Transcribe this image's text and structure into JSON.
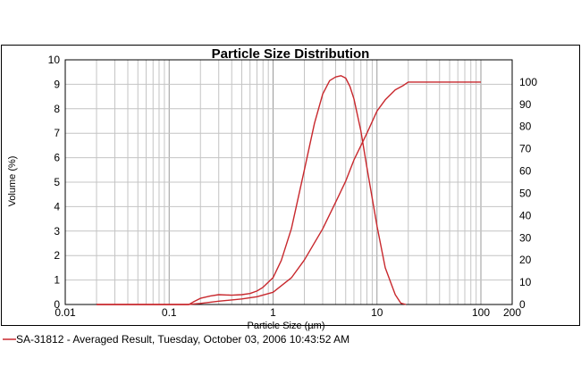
{
  "chart_data": {
    "type": "line",
    "title": "Particle Size Distribution",
    "xlabel": "Particle Size (µm)",
    "ylabel": "Volume (%)",
    "x_scale": "log",
    "xlim": [
      0.01,
      200
    ],
    "ylim": [
      0,
      10
    ],
    "y2lim": [
      0,
      110
    ],
    "grid": true,
    "legend_position": "bottom",
    "x_tick_labels": [
      "0.01",
      "0.1",
      "1",
      "10",
      "100",
      "200"
    ],
    "y_tick_labels": [
      "0",
      "1",
      "2",
      "3",
      "4",
      "5",
      "6",
      "7",
      "8",
      "9",
      "10"
    ],
    "y2_tick_labels": [
      "0",
      "10",
      "20",
      "30",
      "40",
      "50",
      "60",
      "70",
      "80",
      "90",
      "100"
    ],
    "line_color": "#c8282d",
    "series": [
      {
        "name": "SA-31812 - Averaged Result, Tuesday, October 03, 2006 10:43:52 AM",
        "axis": "left",
        "x": [
          0.02,
          0.1,
          0.155,
          0.17,
          0.2,
          0.25,
          0.3,
          0.4,
          0.5,
          0.6,
          0.7,
          0.8,
          1.0,
          1.2,
          1.5,
          2.0,
          2.5,
          3.0,
          3.5,
          4.0,
          4.5,
          5.0,
          5.5,
          6.0,
          7.0,
          8.0,
          10.0,
          12.0,
          15.0,
          17.0,
          19.0
        ],
        "y": [
          0,
          0,
          0,
          0.1,
          0.25,
          0.35,
          0.4,
          0.38,
          0.4,
          0.45,
          0.55,
          0.7,
          1.1,
          1.8,
          3.1,
          5.5,
          7.4,
          8.6,
          9.15,
          9.3,
          9.35,
          9.25,
          8.9,
          8.4,
          7.1,
          5.6,
          3.2,
          1.5,
          0.4,
          0.05,
          0
        ]
      },
      {
        "axis": "right",
        "x": [
          0.02,
          0.1,
          0.15,
          0.2,
          0.3,
          0.5,
          0.7,
          1.0,
          1.5,
          2.0,
          3.0,
          4.0,
          5.0,
          6.0,
          8.0,
          10.0,
          12.0,
          15.0,
          18.0,
          20.0,
          30.0,
          50.0,
          100.0
        ],
        "y": [
          0,
          0,
          0,
          0.5,
          1.5,
          2.5,
          3.5,
          5.5,
          12.0,
          20.0,
          34.0,
          46.0,
          55.5,
          65.0,
          77.0,
          87.0,
          92.0,
          96.5,
          98.5,
          100,
          100,
          100,
          100
        ]
      }
    ]
  }
}
